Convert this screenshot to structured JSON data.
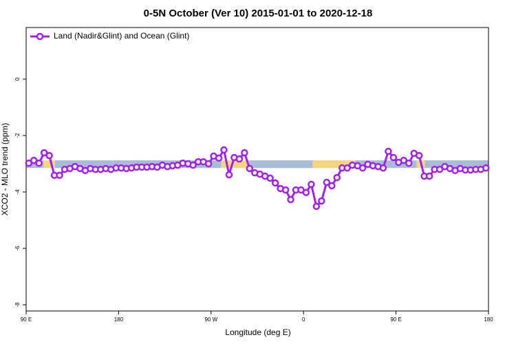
{
  "chart_data": {
    "type": "line",
    "title": "0-5N October (Ver 10)   2015-01-01 to 2020-12-18",
    "x_label": "Longitude (deg E)",
    "y_label": "XCO2 - MLO trend (ppm)",
    "xlim": [
      90,
      540
    ],
    "ylim": [
      -8.22,
      1.83
    ],
    "xticks": [
      {
        "value": 90,
        "label": "90 E"
      },
      {
        "value": 180,
        "label": "180"
      },
      {
        "value": 270,
        "label": "90 W"
      },
      {
        "value": 360,
        "label": "0"
      },
      {
        "value": 450,
        "label": "90 E"
      },
      {
        "value": 540,
        "label": "180"
      }
    ],
    "yticks": [
      -8,
      -6,
      -4,
      -2,
      0
    ],
    "legend": "top-left",
    "surface_band": {
      "y": [
        -3.15,
        -2.88
      ],
      "segments": [
        {
          "from": 90,
          "to": 107,
          "color": "#a9bcd6"
        },
        {
          "from": 107,
          "to": 118,
          "color": "#f6d57e"
        },
        {
          "from": 118,
          "to": 280,
          "color": "#a9bcd6"
        },
        {
          "from": 280,
          "to": 307,
          "color": "#f6d57e"
        },
        {
          "from": 307,
          "to": 369,
          "color": "#a9bcd6"
        },
        {
          "from": 369,
          "to": 410,
          "color": "#f6d57e"
        },
        {
          "from": 410,
          "to": 470,
          "color": "#a9bcd6"
        },
        {
          "from": 470,
          "to": 478,
          "color": "#f6d57e"
        },
        {
          "from": 478,
          "to": 540,
          "color": "#a9bcd6"
        }
      ]
    },
    "x": [
      92.5,
      97.5,
      102.5,
      107.5,
      112.5,
      117.5,
      122.5,
      127.5,
      132.5,
      137.5,
      142.5,
      147.5,
      152.5,
      157.5,
      162.5,
      167.5,
      172.5,
      177.5,
      182.5,
      187.5,
      192.5,
      197.5,
      202.5,
      207.5,
      212.5,
      217.5,
      222.5,
      227.5,
      232.5,
      237.5,
      242.5,
      247.5,
      252.5,
      257.5,
      262.5,
      267.5,
      272.5,
      277.5,
      282.5,
      287.5,
      292.5,
      297.5,
      302.5,
      307.5,
      312.5,
      317.5,
      322.5,
      327.5,
      332.5,
      337.5,
      342.5,
      347.5,
      352.5,
      357.5,
      362.5,
      367.5,
      372.5,
      377.5,
      382.5,
      387.5,
      392.5,
      397.5,
      402.5,
      407.5,
      412.5,
      417.5,
      422.5,
      427.5,
      432.5,
      437.5,
      442.5,
      447.5,
      452.5,
      457.5,
      462.5,
      467.5,
      472.5,
      477.5,
      482.5,
      487.5,
      492.5,
      497.5,
      502.5,
      507.5,
      512.5,
      517.5,
      522.5,
      527.5,
      532.5,
      537.5
    ],
    "series": [
      {
        "name": "Land (Nadir&Glint) and Ocean (Glint)",
        "color": "#a020f0",
        "values": [
          -2.98,
          -2.88,
          -2.98,
          -2.61,
          -2.71,
          -3.41,
          -3.41,
          -3.2,
          -3.17,
          -3.1,
          -3.17,
          -3.24,
          -3.17,
          -3.2,
          -3.2,
          -3.17,
          -3.2,
          -3.15,
          -3.15,
          -3.17,
          -3.15,
          -3.12,
          -3.12,
          -3.12,
          -3.1,
          -3.12,
          -3.05,
          -3.1,
          -3.07,
          -3.05,
          -2.98,
          -3.0,
          -3.05,
          -2.93,
          -2.93,
          -3.0,
          -2.73,
          -2.8,
          -2.51,
          -3.39,
          -2.78,
          -2.83,
          -2.61,
          -3.17,
          -3.32,
          -3.37,
          -3.44,
          -3.51,
          -3.68,
          -3.88,
          -3.93,
          -4.27,
          -3.93,
          -3.93,
          -4.02,
          -3.73,
          -4.51,
          -4.32,
          -3.66,
          -3.78,
          -3.49,
          -3.15,
          -3.15,
          -3.05,
          -3.07,
          -3.15,
          -3.02,
          -3.07,
          -3.1,
          -3.15,
          -2.56,
          -2.78,
          -2.95,
          -2.88,
          -2.98,
          -2.63,
          -2.71,
          -3.44,
          -3.44,
          -3.2,
          -3.2,
          -3.1,
          -3.17,
          -3.24,
          -3.17,
          -3.22,
          -3.22,
          -3.2,
          -3.2,
          -3.15
        ]
      }
    ]
  }
}
